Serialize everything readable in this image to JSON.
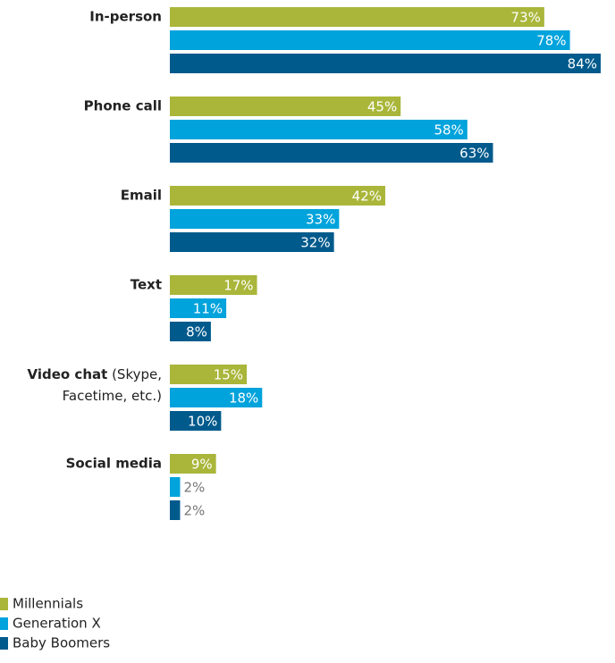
{
  "chart_data": {
    "type": "bar",
    "orientation": "horizontal",
    "categories": [
      "In-person",
      "Phone call",
      "Email",
      "Text",
      "Video chat (Skype, Facetime, etc.)",
      "Social media"
    ],
    "series": [
      {
        "name": "Millennials",
        "color": "#a9b63a",
        "values": [
          73,
          45,
          42,
          17,
          15,
          9
        ],
        "value_labels": [
          "73%",
          "45%",
          "42%",
          "17%",
          "15%",
          "9%"
        ]
      },
      {
        "name": "Generation X",
        "color": "#00a3dc",
        "values": [
          78,
          58,
          33,
          11,
          18,
          2
        ],
        "value_labels": [
          "78%",
          "58%",
          "33%",
          "11%",
          "18%",
          "2%"
        ]
      },
      {
        "name": "Baby Boomers",
        "color": "#005a8c",
        "values": [
          84,
          63,
          32,
          8,
          10,
          2
        ],
        "value_labels": [
          "84%",
          "63%",
          "32%",
          "8%",
          "10%",
          "2%"
        ]
      }
    ]
  }
}
